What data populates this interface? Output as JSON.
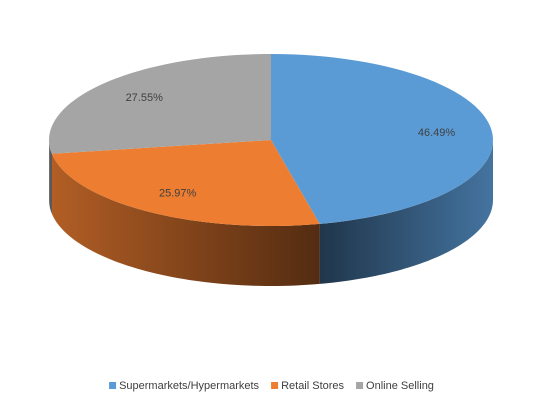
{
  "chart_data": {
    "type": "pie",
    "categories": [
      "Supermarkets/Hypermarkets",
      "Retail Stores",
      "Online Selling"
    ],
    "values": [
      46.49,
      25.97,
      27.55
    ],
    "value_labels": [
      "46.49%",
      "25.97%",
      "27.55%"
    ],
    "colors": [
      "#5b9bd5",
      "#ed7d31",
      "#a5a5a5"
    ],
    "legend": "bottom"
  }
}
